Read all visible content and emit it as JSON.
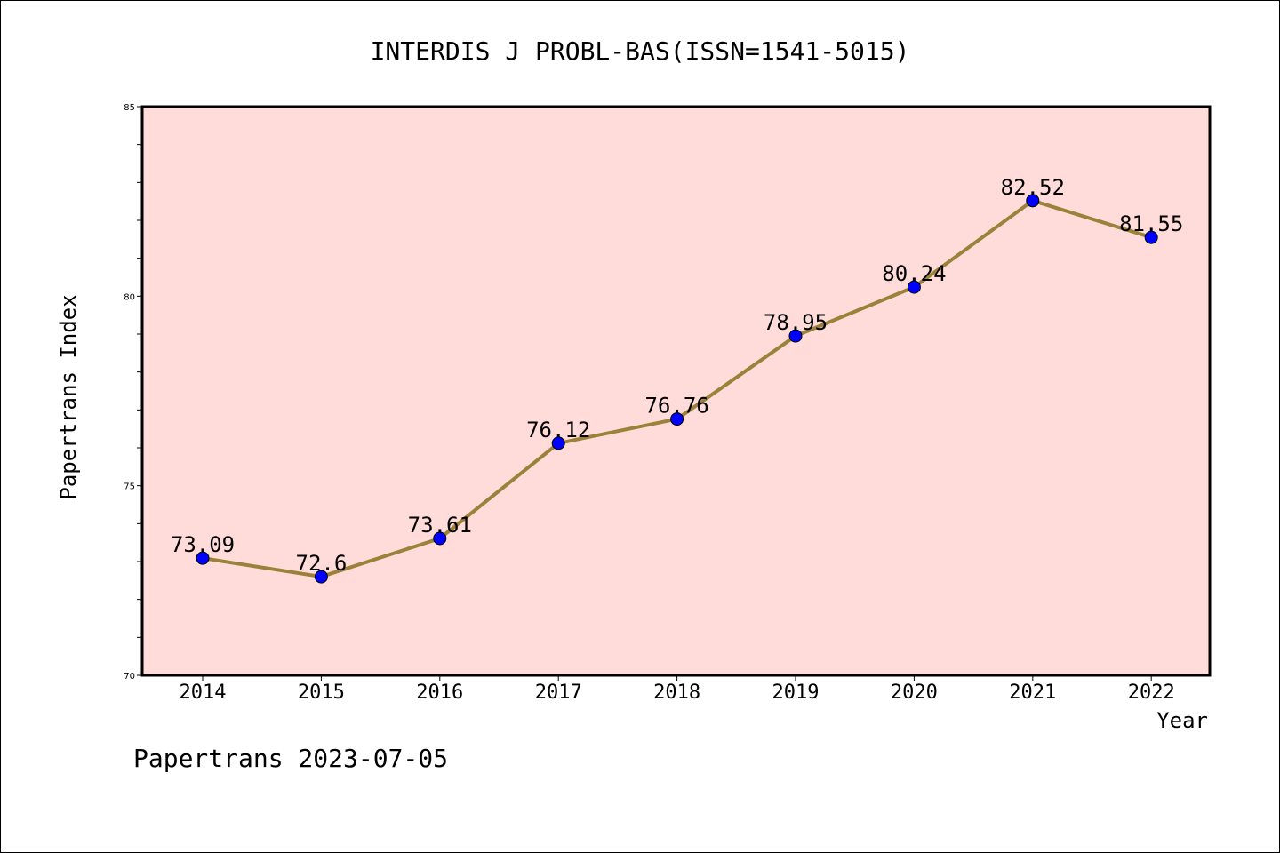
{
  "chart_data": {
    "type": "line",
    "title": "INTERDIS J PROBL-BAS(ISSN=1541-5015)",
    "xlabel": "Year",
    "ylabel": "Papertrans Index",
    "categories": [
      "2014",
      "2015",
      "2016",
      "2017",
      "2018",
      "2019",
      "2020",
      "2021",
      "2022"
    ],
    "values": [
      73.09,
      72.6,
      73.61,
      76.12,
      76.76,
      78.95,
      80.24,
      82.52,
      81.55
    ],
    "value_labels": [
      "73.09",
      "72.6",
      "73.61",
      "76.12",
      "76.76",
      "78.95",
      "80.24",
      "82.52",
      "81.55"
    ],
    "ylim": [
      70,
      85
    ],
    "yticks": [
      "70",
      "75",
      "80",
      "85"
    ],
    "grid": false,
    "legend": "none",
    "colors": {
      "plot_background": "#ffdcd9",
      "line": "#9b8139",
      "marker": "#0000ff",
      "marker_edge": "#000000"
    }
  },
  "footer": "Papertrans 2023-07-05"
}
